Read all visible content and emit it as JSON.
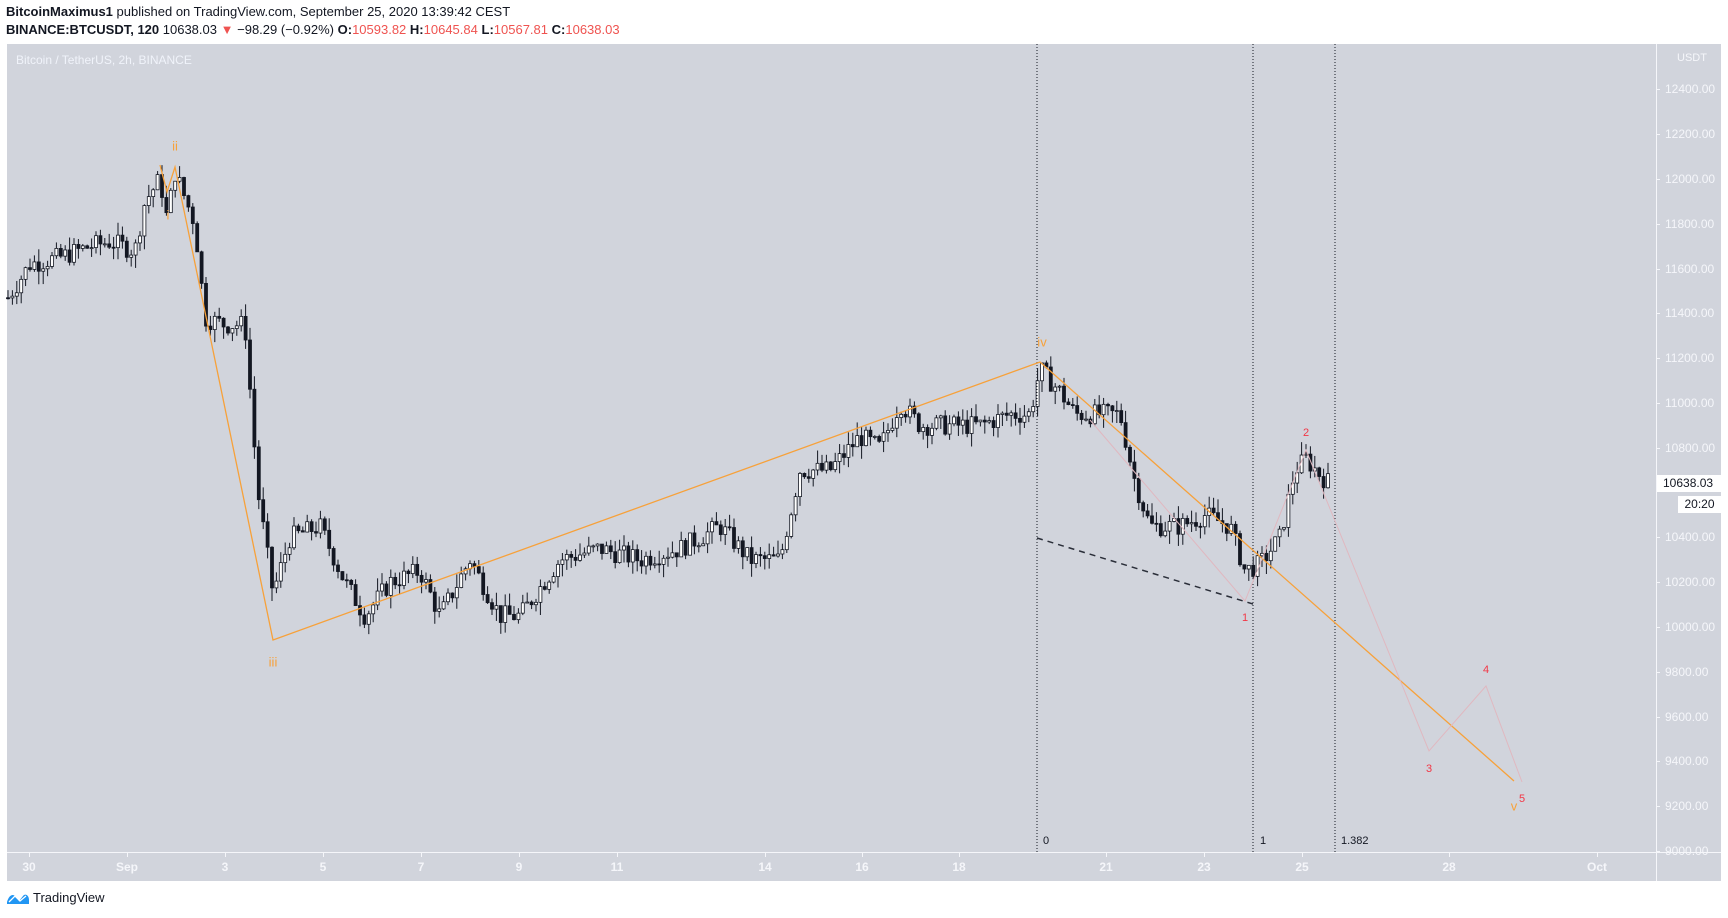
{
  "header": {
    "author": "BitcoinMaximus1",
    "published_text": "published on TradingView.com, September 25, 2020 13:39:42 CEST",
    "symbol": "BINANCE:BTCUSDT, 120",
    "last": "10638.03",
    "change_arrow": "▼",
    "change": "−98.29 (−0.92%)",
    "o_label": "O:",
    "o": "10593.82",
    "h_label": "H:",
    "h": "10645.84",
    "l_label": "L:",
    "l": "10567.81",
    "c_label": "C:",
    "c": "10638.03"
  },
  "pane": {
    "title": "Bitcoin / TetherUS, 2h, BINANCE",
    "unit": "USDT"
  },
  "price_axis": {
    "labels": [
      "12400.00",
      "12200.00",
      "12000.00",
      "11800.00",
      "11600.00",
      "11400.00",
      "11200.00",
      "11000.00",
      "10800.00",
      "10400.00",
      "10200.00",
      "10000.00",
      "9800.00",
      "9600.00",
      "9400.00",
      "9200.00",
      "9000.00"
    ],
    "current_price": "10638.03",
    "countdown": "20:20"
  },
  "time_axis": {
    "labels": [
      "30",
      "Sep",
      "3",
      "5",
      "7",
      "9",
      "11",
      "14",
      "16",
      "18",
      "21",
      "23",
      "25",
      "28",
      "Oct"
    ]
  },
  "fib_labels": [
    "0",
    "1",
    "1.382"
  ],
  "wave_labels": {
    "orange": [
      "i",
      "ii",
      "iii",
      "iv",
      "v"
    ],
    "red": [
      "1",
      "2",
      "3",
      "4",
      "5"
    ]
  },
  "colors": {
    "background": "#d1d4dc",
    "up_candle": "#ffffff",
    "down_candle": "#131722",
    "wave_orange": "#f7a13a",
    "wave_red": "#f23645",
    "projection_pink": "#e0b8c0"
  },
  "footer": {
    "brand": "TradingView"
  },
  "chart_data": {
    "type": "candlestick",
    "title": "Bitcoin / TetherUS, 2h, BINANCE",
    "xlabel": "",
    "ylabel": "USDT",
    "ylim": [
      9000,
      12500
    ],
    "x_ticks": [
      "30 Aug",
      "1 Sep",
      "3",
      "5",
      "7",
      "9",
      "11",
      "14",
      "16",
      "18",
      "21",
      "23",
      "25",
      "28",
      "1 Oct"
    ],
    "approx_price_path": [
      {
        "date": "Aug 30",
        "price": 11470
      },
      {
        "date": "Aug 31",
        "price": 11650
      },
      {
        "date": "Sep 1",
        "price": 11750
      },
      {
        "date": "Sep 1 (ii top)",
        "price": 12050
      },
      {
        "date": "Sep 2",
        "price": 11900
      },
      {
        "date": "Sep 3",
        "price": 11350
      },
      {
        "date": "Sep 3 late",
        "price": 10500
      },
      {
        "date": "Sep 4 (iii low)",
        "price": 9950
      },
      {
        "date": "Sep 5",
        "price": 10500
      },
      {
        "date": "Sep 6",
        "price": 10050
      },
      {
        "date": "Sep 8",
        "price": 10300
      },
      {
        "date": "Sep 9",
        "price": 10050
      },
      {
        "date": "Sep 11",
        "price": 10400
      },
      {
        "date": "Sep 14",
        "price": 10350
      },
      {
        "date": "Sep 15",
        "price": 10800
      },
      {
        "date": "Sep 17",
        "price": 11000
      },
      {
        "date": "Sep 19 (iv top)",
        "price": 11180
      },
      {
        "date": "Sep 21",
        "price": 10950
      },
      {
        "date": "Sep 22",
        "price": 10450
      },
      {
        "date": "Sep 24 (1 low)",
        "price": 10150
      },
      {
        "date": "Sep 25 (2 top)",
        "price": 10780
      },
      {
        "date": "Sep 25 last",
        "price": 10638.03
      }
    ],
    "annotations": {
      "elliott_waves_orange": [
        {
          "label": "i",
          "price": 11800
        },
        {
          "label": "ii",
          "price": 12050
        },
        {
          "label": "iii",
          "price": 9950
        },
        {
          "label": "iv",
          "price": 11180
        },
        {
          "label": "v",
          "price": 9300
        }
      ],
      "projection_waves_red": [
        {
          "label": "1",
          "price": 10100
        },
        {
          "label": "2",
          "price": 10780
        },
        {
          "label": "3",
          "price": 9440
        },
        {
          "label": "4",
          "price": 9740
        },
        {
          "label": "5",
          "price": 9300
        }
      ],
      "fib_time_extension": [
        "0",
        "1",
        "1.382"
      ],
      "last_price": 10638.03
    }
  }
}
